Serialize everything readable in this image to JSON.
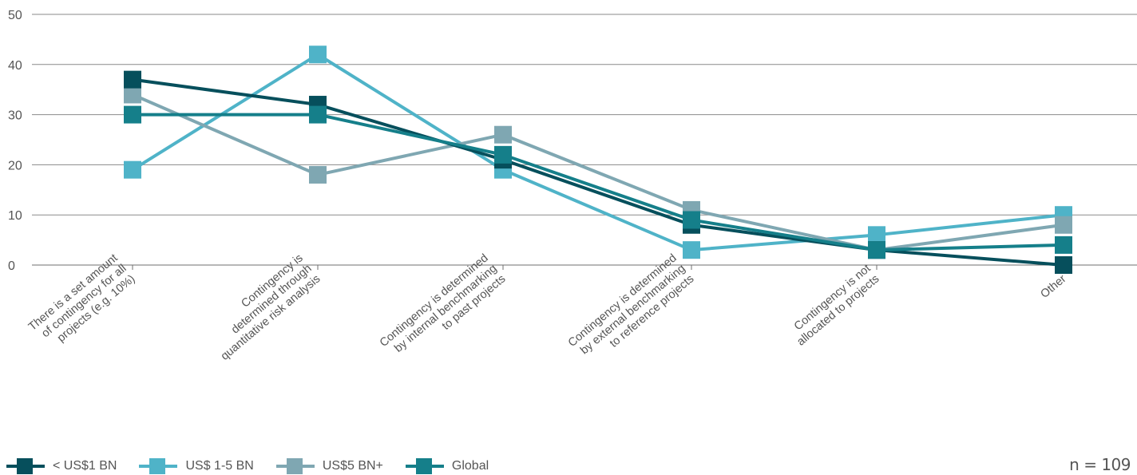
{
  "chart_data": {
    "type": "line",
    "categories": [
      "There is a set amount\nof contingency for all\nprojects (e.g. 10%)",
      "Contingency is\ndetermined through\nquantitative risk analysis",
      "Contingency is determined\nby internal benchmarking\nto past projects",
      "Contingency is determined\nby external benchmarking\nto reference projects",
      "Contingency is not\nallocated to projects",
      "Other"
    ],
    "series": [
      {
        "name": "US$ 1-5 BN",
        "color": "#4fb3c8",
        "values": [
          19,
          42,
          19,
          3,
          6,
          10
        ]
      },
      {
        "name": "US$5 BN+",
        "color": "#7fa7b2",
        "values": [
          34,
          18,
          26,
          11,
          3,
          8
        ]
      },
      {
        "name": "< US$1 BN",
        "color": "#064f5c",
        "values": [
          37,
          32,
          21,
          8,
          3,
          0
        ]
      },
      {
        "name": "Global",
        "color": "#157f8a",
        "values": [
          30,
          30,
          22,
          9,
          3,
          4
        ]
      }
    ],
    "ylim": [
      0,
      50
    ],
    "yticks": [
      0,
      10,
      20,
      30,
      40,
      50
    ],
    "grid": true,
    "legend_position": "bottom-left",
    "title": "",
    "xlabel": "",
    "ylabel": ""
  },
  "legend": [
    {
      "label": "< US$1 BN",
      "color": "#064f5c"
    },
    {
      "label": "US$ 1-5 BN",
      "color": "#4fb3c8"
    },
    {
      "label": "US$5 BN+",
      "color": "#7fa7b2"
    },
    {
      "label": "Global",
      "color": "#157f8a"
    }
  ],
  "sample_size": "n = 109"
}
